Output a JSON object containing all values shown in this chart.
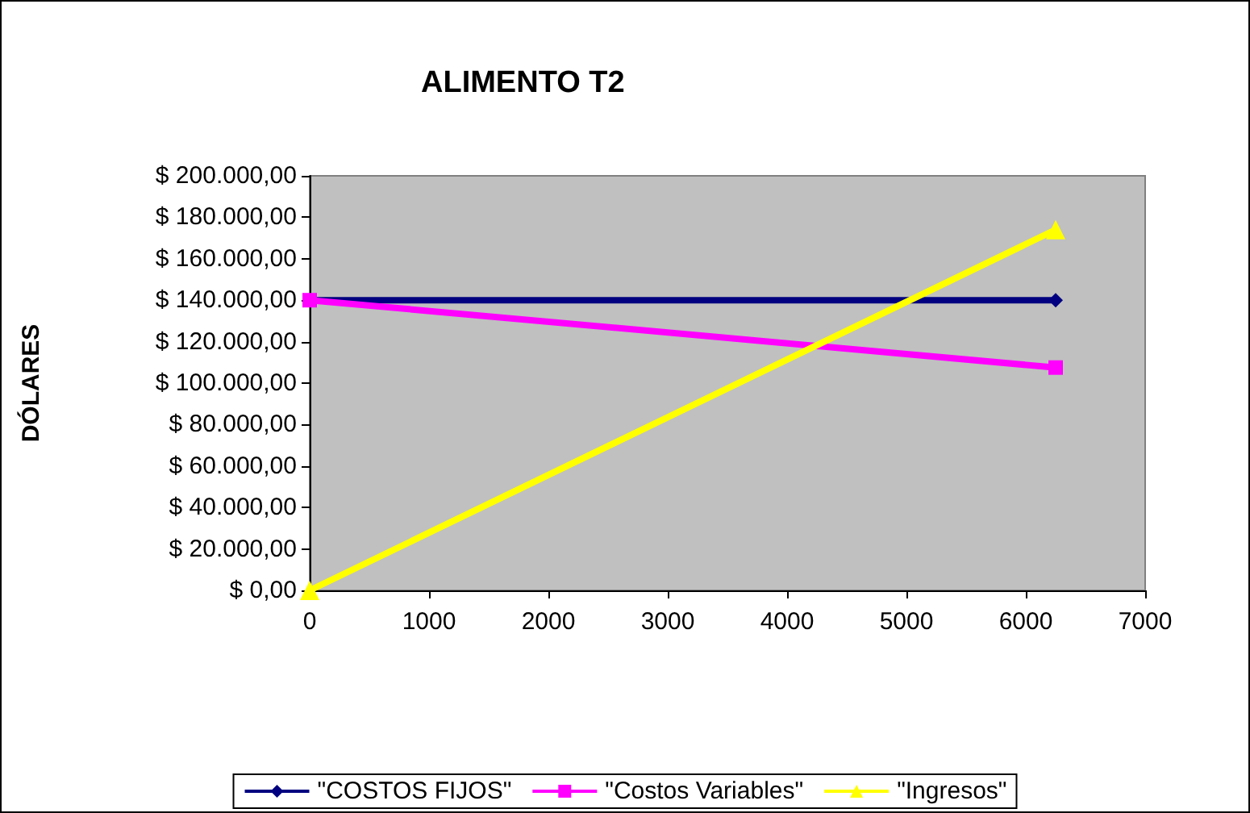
{
  "chart_data": {
    "type": "line",
    "title": "ALIMENTO T2",
    "ylabel": "DÓLARES",
    "x": [
      0,
      6250
    ],
    "series": [
      {
        "name": "\"COSTOS FIJOS\"",
        "color": "#000080",
        "marker": "diamond",
        "values": [
          140000,
          140000
        ]
      },
      {
        "name": "\"Costos Variables\"",
        "color": "#ff00ff",
        "marker": "square",
        "values": [
          140000,
          107500
        ]
      },
      {
        "name": "\"Ingresos\"",
        "color": "#ffff00",
        "marker": "triangle",
        "values": [
          0,
          174000
        ]
      }
    ],
    "xlim": [
      0,
      7000
    ],
    "xticks": [
      0,
      1000,
      2000,
      3000,
      4000,
      5000,
      6000,
      7000
    ],
    "ylim": [
      0,
      200000
    ],
    "yticks": [
      {
        "value": 0,
        "label": "$ 0,00"
      },
      {
        "value": 20000,
        "label": "$ 20.000,00"
      },
      {
        "value": 40000,
        "label": "$ 40.000,00"
      },
      {
        "value": 60000,
        "label": "$ 60.000,00"
      },
      {
        "value": 80000,
        "label": "$ 80.000,00"
      },
      {
        "value": 100000,
        "label": "$ 100.000,00"
      },
      {
        "value": 120000,
        "label": "$ 120.000,00"
      },
      {
        "value": 140000,
        "label": "$ 140.000,00"
      },
      {
        "value": 160000,
        "label": "$ 160.000,00"
      },
      {
        "value": 180000,
        "label": "$ 180.000,00"
      },
      {
        "value": 200000,
        "label": "$ 200.000,00"
      }
    ],
    "grid": false,
    "legend": "bottom",
    "line_style": "solid"
  }
}
